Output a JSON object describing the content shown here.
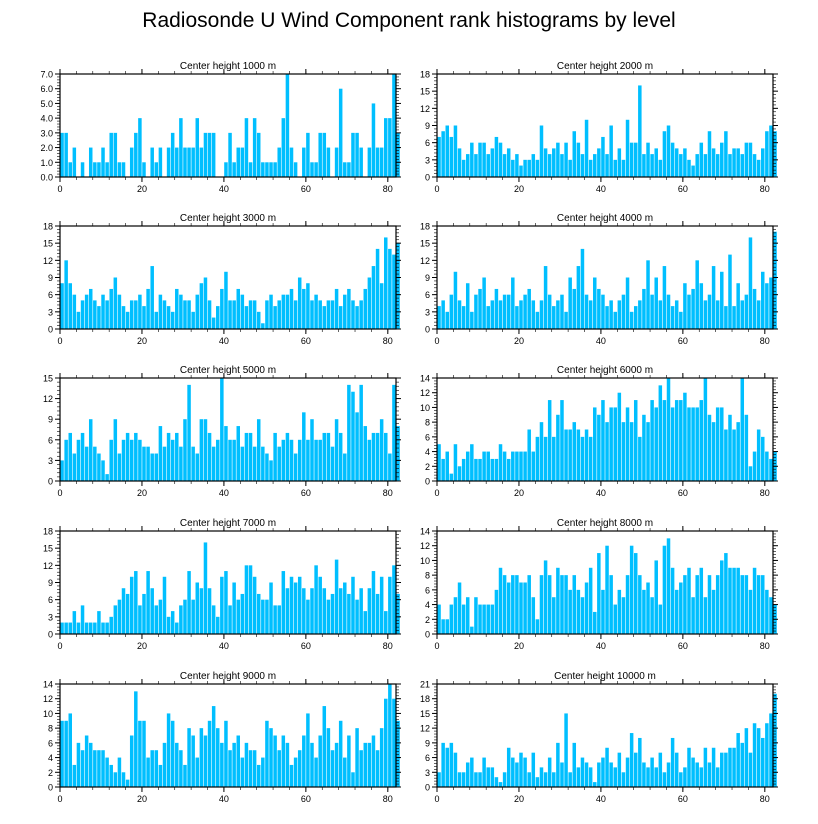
{
  "title": "Radiosonde U Wind Component rank histograms by level",
  "bar_color": "#00bfff",
  "chart_data": [
    {
      "type": "bar",
      "title": "Center height 1000 m",
      "xticks": [
        0,
        20,
        40,
        60,
        80
      ],
      "xlim": [
        0,
        82
      ],
      "yticks": [
        "0.0",
        "1.0",
        "2.0",
        "3.0",
        "4.0",
        "5.0",
        "6.0",
        "7.0"
      ],
      "ylim": [
        0,
        7
      ],
      "values": [
        3,
        3,
        1,
        2,
        0,
        1,
        0,
        2,
        1,
        1,
        2,
        1,
        3,
        3,
        1,
        1,
        0,
        2,
        3,
        4,
        1,
        0,
        2,
        1,
        2,
        0,
        2,
        3,
        2,
        4,
        2,
        2,
        2,
        4,
        2,
        3,
        3,
        3,
        0,
        0,
        1,
        3,
        1,
        2,
        2,
        4,
        1,
        4,
        3,
        1,
        1,
        1,
        1,
        2,
        4,
        7,
        2,
        1,
        0,
        2,
        3,
        1,
        1,
        3,
        3,
        2,
        0,
        2,
        6,
        1,
        1,
        3,
        3,
        2,
        0,
        2,
        5,
        2,
        2,
        4,
        4,
        7,
        3
      ]
    },
    {
      "type": "bar",
      "title": "Center height 2000 m",
      "xticks": [
        0,
        20,
        40,
        60,
        80
      ],
      "xlim": [
        0,
        82
      ],
      "yticks": [
        "0",
        "3",
        "6",
        "9",
        "12",
        "15",
        "18"
      ],
      "ylim": [
        0,
        18
      ],
      "values": [
        7,
        8,
        9,
        7,
        9,
        5,
        3,
        4,
        6,
        4,
        6,
        6,
        4,
        5,
        7,
        6,
        4,
        5,
        3,
        4,
        2,
        3,
        3,
        4,
        3,
        9,
        5,
        4,
        5,
        6,
        4,
        6,
        3,
        8,
        6,
        4,
        10,
        3,
        4,
        5,
        7,
        4,
        9,
        3,
        5,
        3,
        10,
        6,
        6,
        16,
        4,
        6,
        4,
        5,
        3,
        8,
        9,
        6,
        5,
        4,
        5,
        3,
        2,
        4,
        6,
        4,
        8,
        5,
        4,
        6,
        8,
        4,
        5,
        5,
        4,
        6,
        6,
        4,
        3,
        5,
        8,
        9,
        8
      ]
    },
    {
      "type": "bar",
      "title": "Center height 3000 m",
      "xticks": [
        0,
        20,
        40,
        60,
        80
      ],
      "xlim": [
        0,
        82
      ],
      "yticks": [
        "0",
        "3",
        "6",
        "9",
        "12",
        "15",
        "18"
      ],
      "ylim": [
        0,
        18
      ],
      "values": [
        8,
        12,
        8,
        6,
        3,
        5,
        6,
        7,
        5,
        4,
        6,
        5,
        7,
        9,
        6,
        4,
        3,
        5,
        5,
        6,
        4,
        7,
        11,
        3,
        6,
        5,
        4,
        3,
        7,
        6,
        5,
        5,
        3,
        6,
        8,
        9,
        5,
        2,
        4,
        7,
        10,
        5,
        5,
        7,
        6,
        4,
        5,
        5,
        3,
        1,
        5,
        6,
        4,
        5,
        6,
        6,
        7,
        5,
        9,
        7,
        8,
        5,
        6,
        5,
        4,
        5,
        5,
        7,
        4,
        6,
        7,
        5,
        4,
        5,
        7,
        9,
        11,
        14,
        8,
        16,
        14,
        13,
        15
      ]
    },
    {
      "type": "bar",
      "title": "Center height 4000 m",
      "xticks": [
        0,
        20,
        40,
        60,
        80
      ],
      "xlim": [
        0,
        82
      ],
      "yticks": [
        "0",
        "3",
        "6",
        "9",
        "12",
        "15",
        "18"
      ],
      "ylim": [
        0,
        18
      ],
      "values": [
        4,
        5,
        3,
        6,
        10,
        5,
        4,
        8,
        3,
        6,
        7,
        9,
        4,
        5,
        7,
        5,
        6,
        6,
        9,
        4,
        5,
        6,
        7,
        5,
        3,
        5,
        11,
        6,
        4,
        5,
        6,
        3,
        9,
        7,
        11,
        14,
        6,
        5,
        9,
        7,
        6,
        4,
        5,
        3,
        5,
        6,
        9,
        3,
        4,
        5,
        7,
        12,
        6,
        9,
        5,
        11,
        6,
        4,
        5,
        3,
        8,
        6,
        7,
        12,
        8,
        5,
        6,
        11,
        5,
        10,
        4,
        13,
        4,
        8,
        5,
        6,
        16,
        7,
        5,
        10,
        8,
        9,
        17
      ]
    },
    {
      "type": "bar",
      "title": "Center height 5000 m",
      "xticks": [
        0,
        20,
        40,
        60,
        80
      ],
      "xlim": [
        0,
        82
      ],
      "yticks": [
        "0",
        "3",
        "6",
        "9",
        "12",
        "15"
      ],
      "ylim": [
        0,
        15
      ],
      "values": [
        3,
        6,
        7,
        4,
        6,
        7,
        5,
        9,
        5,
        4,
        3,
        1,
        6,
        9,
        4,
        6,
        7,
        6,
        7,
        6,
        5,
        5,
        4,
        4,
        8,
        5,
        7,
        6,
        7,
        5,
        9,
        14,
        5,
        4,
        9,
        9,
        7,
        5,
        6,
        15,
        8,
        6,
        6,
        8,
        5,
        7,
        7,
        5,
        9,
        5,
        4,
        3,
        7,
        5,
        6,
        7,
        6,
        4,
        6,
        10,
        6,
        9,
        6,
        6,
        7,
        7,
        5,
        9,
        7,
        4,
        14,
        13,
        10,
        14,
        8,
        6,
        7,
        7,
        9,
        7,
        4,
        14,
        8
      ]
    },
    {
      "type": "bar",
      "title": "Center height 6000 m",
      "xticks": [
        0,
        20,
        40,
        60,
        80
      ],
      "xlim": [
        0,
        82
      ],
      "yticks": [
        "0",
        "2",
        "4",
        "6",
        "8",
        "10",
        "12",
        "14"
      ],
      "ylim": [
        0,
        14
      ],
      "values": [
        5,
        3,
        4,
        1,
        5,
        2,
        3,
        4,
        5,
        3,
        3,
        4,
        4,
        3,
        3,
        5,
        4,
        3,
        4,
        4,
        4,
        4,
        7,
        4,
        6,
        8,
        6,
        11,
        6,
        9,
        11,
        7,
        7,
        8,
        7,
        6,
        7,
        6,
        10,
        9,
        11,
        8,
        10,
        10,
        12,
        8,
        10,
        8,
        11,
        6,
        9,
        8,
        11,
        10,
        13,
        11,
        14,
        10,
        11,
        11,
        12,
        10,
        10,
        10,
        11,
        14,
        9,
        8,
        10,
        10,
        7,
        9,
        7,
        8,
        14,
        9,
        2,
        4,
        7,
        6,
        4,
        3,
        4
      ]
    },
    {
      "type": "bar",
      "title": "Center height 7000 m",
      "xticks": [
        0,
        20,
        40,
        60,
        80
      ],
      "xlim": [
        0,
        82
      ],
      "yticks": [
        "0",
        "3",
        "6",
        "9",
        "12",
        "15",
        "18"
      ],
      "ylim": [
        0,
        18
      ],
      "values": [
        2,
        2,
        2,
        4,
        2,
        5,
        2,
        2,
        2,
        4,
        2,
        2,
        3,
        5,
        6,
        8,
        7,
        10,
        11,
        5,
        7,
        11,
        8,
        5,
        6,
        10,
        3,
        4,
        2,
        5,
        6,
        11,
        6,
        9,
        8,
        16,
        8,
        5,
        3,
        10,
        11,
        5,
        9,
        6,
        7,
        12,
        12,
        10,
        7,
        6,
        6,
        9,
        5,
        5,
        11,
        8,
        10,
        9,
        10,
        8,
        6,
        8,
        12,
        10,
        8,
        6,
        7,
        13,
        8,
        9,
        7,
        10,
        6,
        8,
        4,
        8,
        11,
        7,
        10,
        4,
        10,
        12,
        7
      ]
    },
    {
      "type": "bar",
      "title": "Center height 8000 m",
      "xticks": [
        0,
        20,
        40,
        60,
        80
      ],
      "xlim": [
        0,
        82
      ],
      "yticks": [
        "0",
        "2",
        "4",
        "6",
        "8",
        "10",
        "12",
        "14"
      ],
      "ylim": [
        0,
        14
      ],
      "values": [
        4,
        2,
        2,
        4,
        5,
        7,
        4,
        5,
        1,
        5,
        4,
        4,
        4,
        4,
        6,
        9,
        8,
        7,
        8,
        8,
        7,
        7,
        8,
        5,
        2,
        8,
        10,
        8,
        5,
        9,
        8,
        8,
        6,
        8,
        6,
        5,
        7,
        9,
        3,
        11,
        6,
        12,
        8,
        4,
        6,
        5,
        8,
        12,
        11,
        8,
        6,
        7,
        5,
        10,
        4,
        12,
        13,
        9,
        6,
        7,
        8,
        9,
        5,
        8,
        9,
        5,
        8,
        6,
        8,
        10,
        11,
        9,
        9,
        9,
        8,
        8,
        6,
        9,
        8,
        8,
        6,
        5,
        4
      ]
    },
    {
      "type": "bar",
      "title": "Center height 9000 m",
      "xticks": [
        0,
        20,
        40,
        60,
        80
      ],
      "xlim": [
        0,
        82
      ],
      "yticks": [
        "0",
        "2",
        "4",
        "6",
        "8",
        "10",
        "12",
        "14"
      ],
      "ylim": [
        0,
        14
      ],
      "values": [
        9,
        9,
        10,
        3,
        6,
        5,
        7,
        6,
        5,
        5,
        5,
        4,
        3,
        2,
        4,
        2,
        1,
        7,
        13,
        9,
        9,
        4,
        5,
        5,
        3,
        6,
        10,
        9,
        6,
        5,
        3,
        8,
        7,
        4,
        8,
        7,
        9,
        11,
        8,
        6,
        9,
        5,
        6,
        7,
        4,
        6,
        5,
        5,
        3,
        4,
        9,
        8,
        7,
        5,
        7,
        6,
        3,
        4,
        5,
        7,
        10,
        6,
        4,
        7,
        11,
        8,
        5,
        6,
        9,
        4,
        7,
        2,
        8,
        5,
        6,
        6,
        7,
        5,
        8,
        12,
        14,
        12,
        9
      ]
    },
    {
      "type": "bar",
      "title": "Center height 10000 m",
      "xticks": [
        0,
        20,
        40,
        60,
        80
      ],
      "xlim": [
        0,
        82
      ],
      "yticks": [
        "0",
        "3",
        "6",
        "9",
        "12",
        "15",
        "18",
        "21"
      ],
      "ylim": [
        0,
        21
      ],
      "values": [
        3,
        9,
        8,
        9,
        7,
        3,
        3,
        5,
        6,
        3,
        3,
        6,
        4,
        4,
        2,
        1,
        3,
        8,
        6,
        5,
        7,
        6,
        3,
        7,
        2,
        4,
        3,
        6,
        3,
        9,
        5,
        15,
        3,
        9,
        4,
        6,
        5,
        4,
        1,
        5,
        6,
        8,
        5,
        4,
        7,
        3,
        6,
        11,
        7,
        10,
        5,
        4,
        6,
        4,
        7,
        3,
        5,
        10,
        7,
        3,
        4,
        8,
        6,
        5,
        4,
        8,
        5,
        8,
        4,
        7,
        7,
        8,
        8,
        11,
        9,
        12,
        7,
        13,
        12,
        10,
        13,
        15,
        19
      ]
    }
  ]
}
